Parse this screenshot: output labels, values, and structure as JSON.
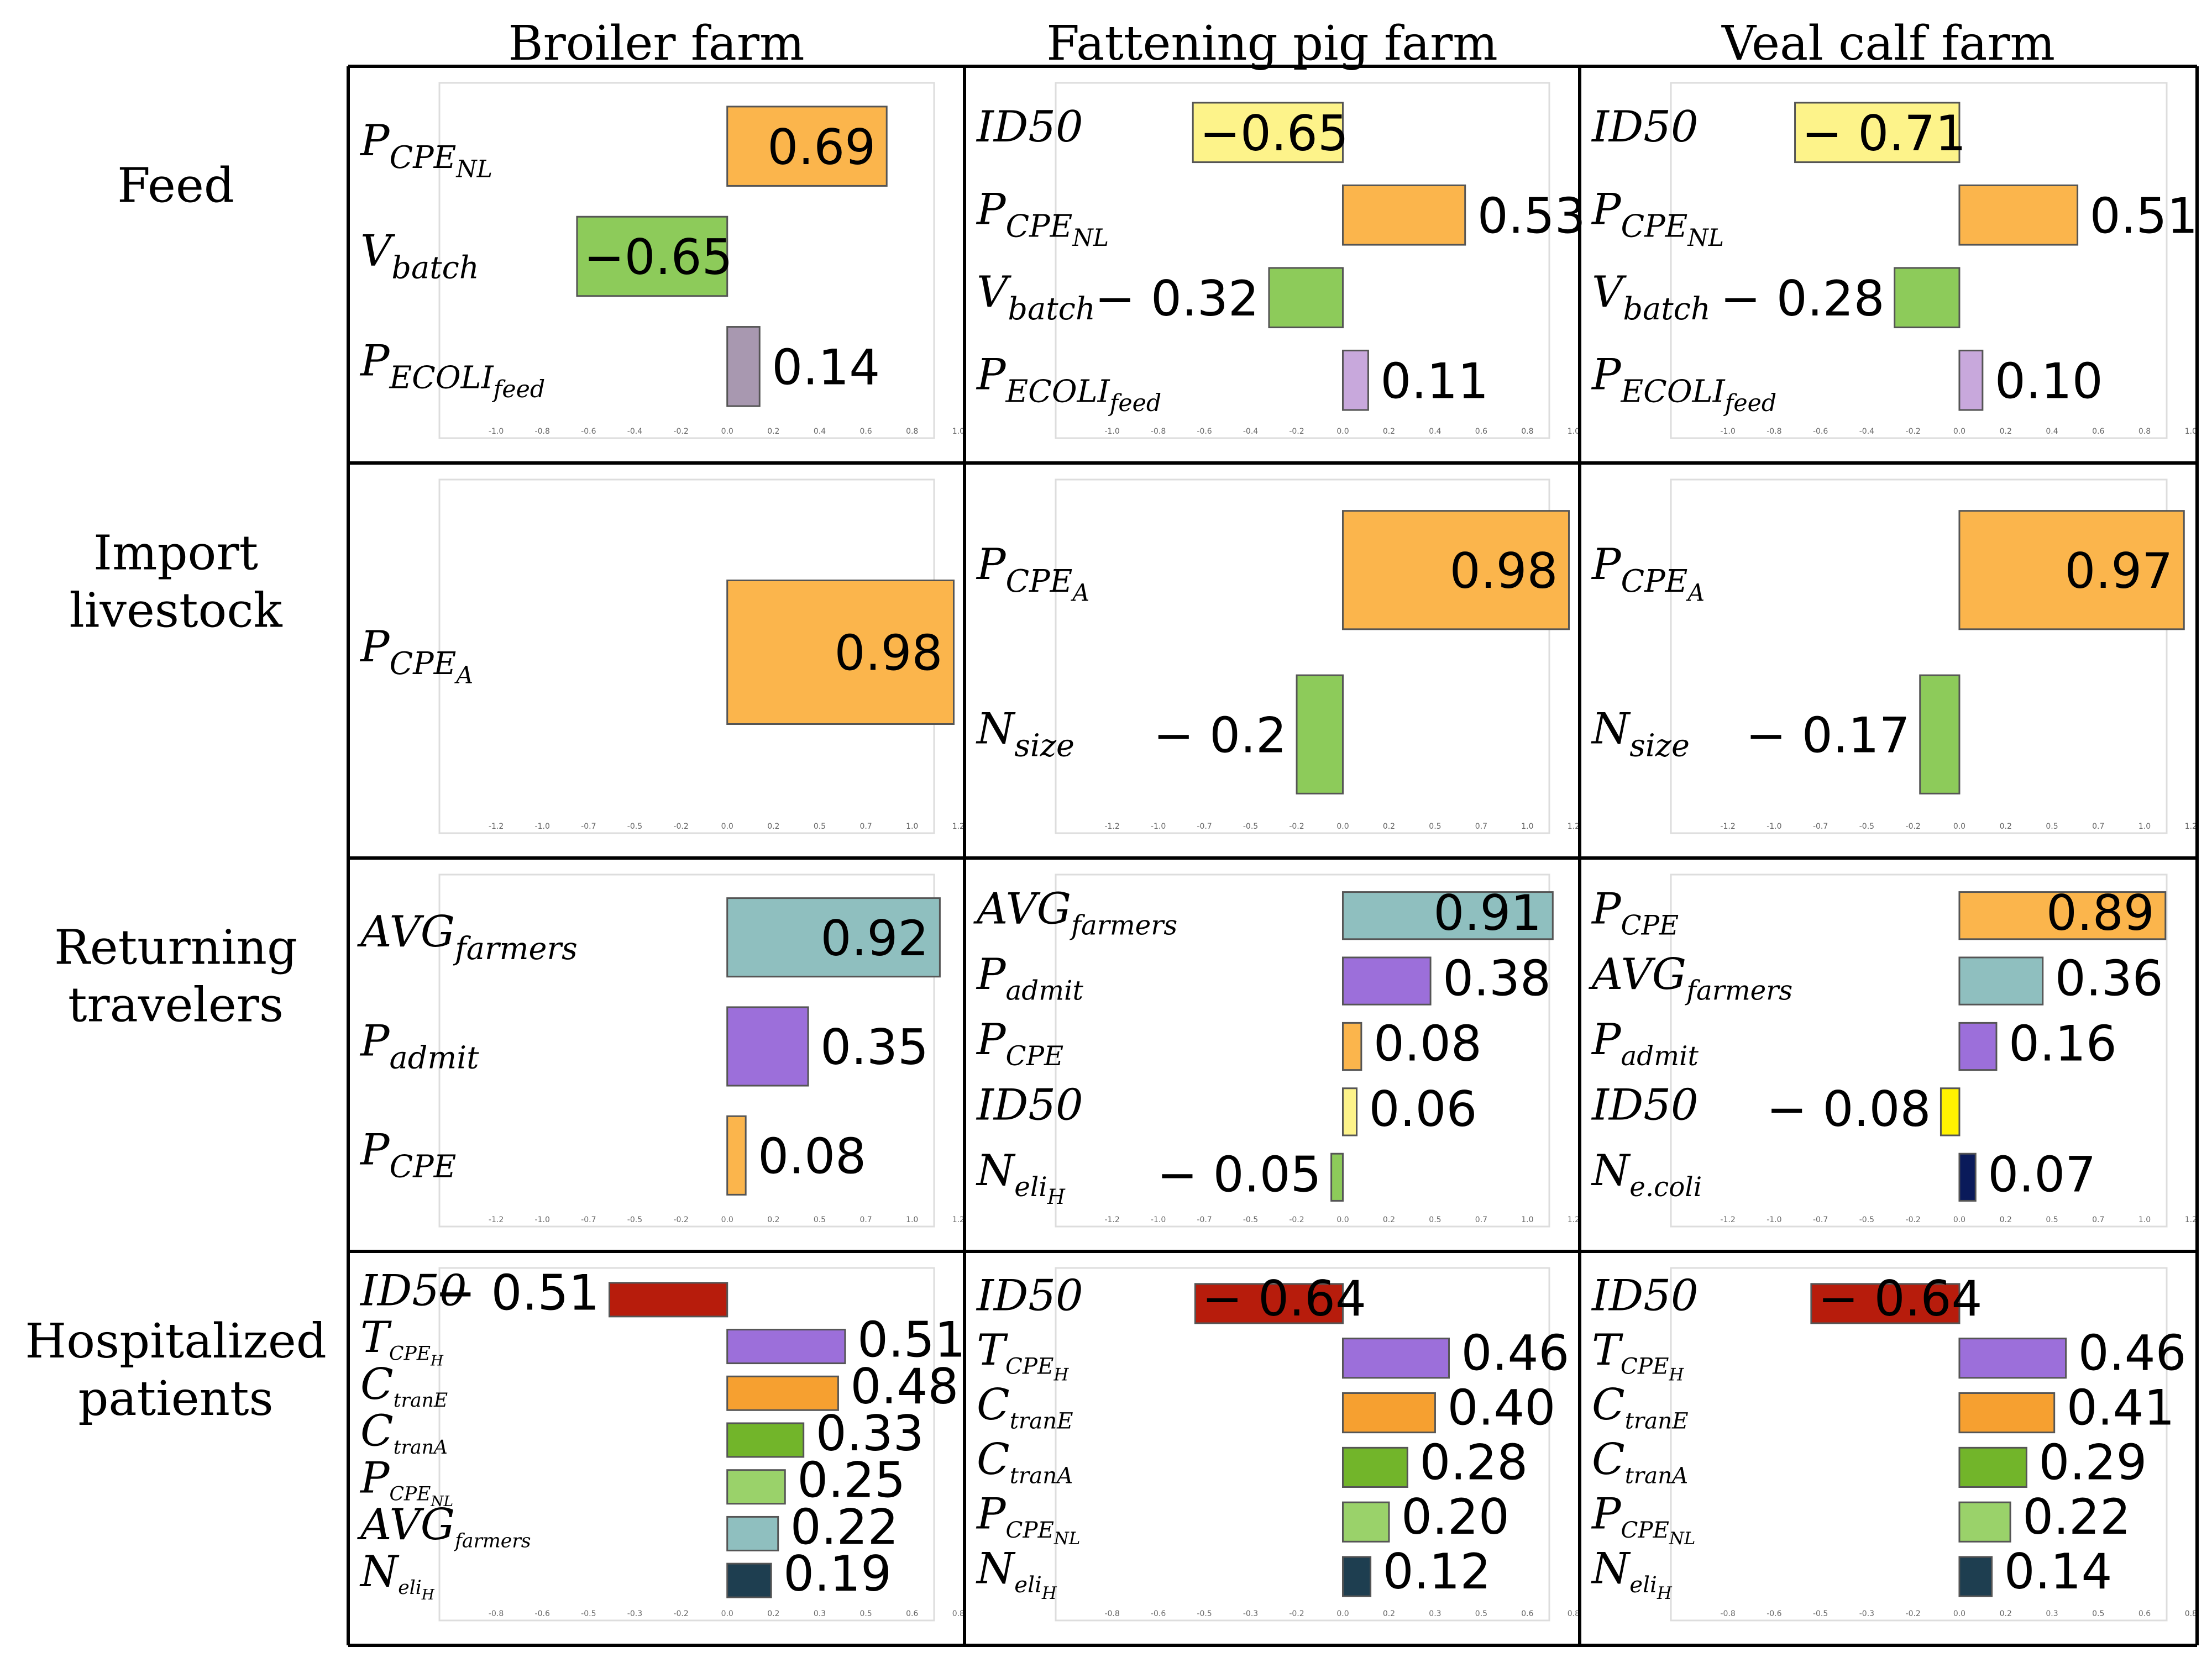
{
  "columns": [
    "Broiler farm",
    "Fattening pig farm",
    "Veal calf farm"
  ],
  "rows": [
    {
      "lines": [
        "Feed"
      ]
    },
    {
      "lines": [
        "Import",
        "livestock"
      ]
    },
    {
      "lines": [
        "Returning",
        "travelers"
      ]
    },
    {
      "lines": [
        "Hospitalized",
        "patients"
      ]
    }
  ],
  "colors": {
    "orange": "#FBB54C",
    "green": "#8DCB5A",
    "mauve": "#A898B0",
    "lavender": "#C8A8DC",
    "yellow": "#FDF38A",
    "teal": "#8FBFBF",
    "purple": "#9C6FDA",
    "bright_yellow": "#FFF200",
    "navy": "#0A1A5A",
    "dark_red": "#B71C0C",
    "dark_orange": "#F6A030",
    "dark_green": "#72B52A",
    "light_green": "#9AD26A",
    "dark_teal": "#1E3E50"
  },
  "chart_data": [
    {
      "type": "bar",
      "orientation": "horizontal",
      "row": "Feed",
      "column": "Broiler farm",
      "xlim": [
        -1.0,
        1.0
      ],
      "bars": [
        {
          "name": "P",
          "sub": "CPE",
          "subsub": "NL",
          "value": 0.69,
          "label": "0.69",
          "color": "orange"
        },
        {
          "name": "V",
          "sub": "batch",
          "value": -0.65,
          "label": "−0.65",
          "color": "green"
        },
        {
          "name": "P",
          "sub": "ECOLI",
          "subsub": "feed",
          "value": 0.14,
          "label": "0.14",
          "color": "mauve"
        }
      ]
    },
    {
      "type": "bar",
      "orientation": "horizontal",
      "row": "Feed",
      "column": "Fattening pig farm",
      "xlim": [
        -1.0,
        1.0
      ],
      "bars": [
        {
          "name": "ID50",
          "value": -0.65,
          "label": "−0.65",
          "color": "yellow"
        },
        {
          "name": "P",
          "sub": "CPE",
          "subsub": "NL",
          "value": 0.53,
          "label": "0.53",
          "color": "orange"
        },
        {
          "name": "V",
          "sub": "batch",
          "value": -0.32,
          "label": "− 0.32",
          "color": "green"
        },
        {
          "name": "P",
          "sub": "ECOLI",
          "subsub": "feed",
          "value": 0.11,
          "label": "0.11",
          "color": "lavender"
        }
      ]
    },
    {
      "type": "bar",
      "orientation": "horizontal",
      "row": "Feed",
      "column": "Veal calf farm",
      "xlim": [
        -1.0,
        1.0
      ],
      "bars": [
        {
          "name": "ID50",
          "value": -0.71,
          "label": "− 0.71",
          "color": "yellow"
        },
        {
          "name": "P",
          "sub": "CPE",
          "subsub": "NL",
          "value": 0.51,
          "label": "0.51",
          "color": "orange"
        },
        {
          "name": "V",
          "sub": "batch",
          "value": -0.28,
          "label": "− 0.28",
          "color": "green"
        },
        {
          "name": "P",
          "sub": "ECOLI",
          "subsub": "feed",
          "value": 0.1,
          "label": "0.10",
          "color": "lavender"
        }
      ]
    },
    {
      "type": "bar",
      "orientation": "horizontal",
      "row": "Import livestock",
      "column": "Broiler farm",
      "xlim": [
        -1.2,
        1.2
      ],
      "bars": [
        {
          "name": "P",
          "sub": "CPE",
          "subsub": "A",
          "value": 0.98,
          "label": "0.98",
          "color": "orange"
        }
      ]
    },
    {
      "type": "bar",
      "orientation": "horizontal",
      "row": "Import livestock",
      "column": "Fattening pig farm",
      "xlim": [
        -1.2,
        1.2
      ],
      "bars": [
        {
          "name": "P",
          "sub": "CPE",
          "subsub": "A",
          "value": 0.98,
          "label": "0.98",
          "color": "orange"
        },
        {
          "name": "N",
          "sub": "size",
          "value": -0.2,
          "label": "− 0.2",
          "color": "green"
        }
      ]
    },
    {
      "type": "bar",
      "orientation": "horizontal",
      "row": "Import livestock",
      "column": "Veal calf farm",
      "xlim": [
        -1.2,
        1.2
      ],
      "bars": [
        {
          "name": "P",
          "sub": "CPE",
          "subsub": "A",
          "value": 0.97,
          "label": "0.97",
          "color": "orange"
        },
        {
          "name": "N",
          "sub": "size",
          "value": -0.17,
          "label": "− 0.17",
          "color": "green"
        }
      ]
    },
    {
      "type": "bar",
      "orientation": "horizontal",
      "row": "Returning travelers",
      "column": "Broiler farm",
      "xlim": [
        -1.2,
        1.2
      ],
      "bars": [
        {
          "name": "AVG",
          "sub": "farmers",
          "value": 0.92,
          "label": "0.92",
          "color": "teal"
        },
        {
          "name": "P",
          "sub": "admit",
          "value": 0.35,
          "label": "0.35",
          "color": "purple"
        },
        {
          "name": "P",
          "sub": "CPE",
          "value": 0.08,
          "label": "0.08",
          "color": "orange"
        }
      ]
    },
    {
      "type": "bar",
      "orientation": "horizontal",
      "row": "Returning travelers",
      "column": "Fattening pig farm",
      "xlim": [
        -1.2,
        1.2
      ],
      "bars": [
        {
          "name": "AVG",
          "sub": "farmers",
          "value": 0.91,
          "label": "0.91",
          "color": "teal"
        },
        {
          "name": "P",
          "sub": "admit",
          "value": 0.38,
          "label": "0.38",
          "color": "purple"
        },
        {
          "name": "P",
          "sub": "CPE",
          "value": 0.08,
          "label": "0.08",
          "color": "orange"
        },
        {
          "name": "ID50",
          "value": 0.06,
          "label": "0.06",
          "color": "yellow"
        },
        {
          "name": "N",
          "sub": "eli",
          "subsub": "H",
          "value": -0.05,
          "label": "− 0.05",
          "color": "green"
        }
      ]
    },
    {
      "type": "bar",
      "orientation": "horizontal",
      "row": "Returning travelers",
      "column": "Veal calf farm",
      "xlim": [
        -1.2,
        1.2
      ],
      "bars": [
        {
          "name": "P",
          "sub": "CPE",
          "value": 0.89,
          "label": "0.89",
          "color": "orange"
        },
        {
          "name": "AVG",
          "sub": "farmers",
          "value": 0.36,
          "label": "0.36",
          "color": "teal"
        },
        {
          "name": "P",
          "sub": "admit",
          "value": 0.16,
          "label": "0.16",
          "color": "purple"
        },
        {
          "name": "ID50",
          "value": -0.08,
          "label": "− 0.08",
          "color": "bright_yellow"
        },
        {
          "name": "N",
          "sub": "e.coli",
          "value": 0.07,
          "label": "0.07",
          "color": "navy"
        }
      ]
    },
    {
      "type": "bar",
      "orientation": "horizontal",
      "row": "Hospitalized patients",
      "column": "Broiler farm",
      "xlim": [
        -0.8,
        0.8
      ],
      "bars": [
        {
          "name": "ID50",
          "value": -0.51,
          "label": "− 0.51",
          "color": "dark_red"
        },
        {
          "name": "T",
          "sub": "CPE",
          "subsub": "H",
          "value": 0.51,
          "label": "0.51",
          "color": "purple"
        },
        {
          "name": "C",
          "sub": "tranE",
          "value": 0.48,
          "label": "0.48",
          "color": "dark_orange"
        },
        {
          "name": "C",
          "sub": "tranA",
          "value": 0.33,
          "label": "0.33",
          "color": "dark_green"
        },
        {
          "name": "P",
          "sub": "CPE",
          "subsub": "NL",
          "value": 0.25,
          "label": "0.25",
          "color": "light_green"
        },
        {
          "name": "AVG",
          "sub": "farmers",
          "value": 0.22,
          "label": "0.22",
          "color": "teal"
        },
        {
          "name": "N",
          "sub": "eli",
          "subsub": "H",
          "value": 0.19,
          "label": "0.19",
          "color": "dark_teal"
        }
      ]
    },
    {
      "type": "bar",
      "orientation": "horizontal",
      "row": "Hospitalized patients",
      "column": "Fattening pig farm",
      "xlim": [
        -0.8,
        0.8
      ],
      "bars": [
        {
          "name": "ID50",
          "value": -0.64,
          "label": "− 0.64",
          "color": "dark_red"
        },
        {
          "name": "T",
          "sub": "CPE",
          "subsub": "H",
          "value": 0.46,
          "label": "0.46",
          "color": "purple"
        },
        {
          "name": "C",
          "sub": "tranE",
          "value": 0.4,
          "label": "0.40",
          "color": "dark_orange"
        },
        {
          "name": "C",
          "sub": "tranA",
          "value": 0.28,
          "label": "0.28",
          "color": "dark_green"
        },
        {
          "name": "P",
          "sub": "CPE",
          "subsub": "NL",
          "value": 0.2,
          "label": "0.20",
          "color": "light_green"
        },
        {
          "name": "N",
          "sub": "eli",
          "subsub": "H",
          "value": 0.12,
          "label": "0.12",
          "color": "dark_teal"
        }
      ]
    },
    {
      "type": "bar",
      "orientation": "horizontal",
      "row": "Hospitalized patients",
      "column": "Veal calf farm",
      "xlim": [
        -0.8,
        0.8
      ],
      "bars": [
        {
          "name": "ID50",
          "value": -0.64,
          "label": "− 0.64",
          "color": "dark_red"
        },
        {
          "name": "T",
          "sub": "CPE",
          "subsub": "H",
          "value": 0.46,
          "label": "0.46",
          "color": "purple"
        },
        {
          "name": "C",
          "sub": "tranE",
          "value": 0.41,
          "label": "0.41",
          "color": "dark_orange"
        },
        {
          "name": "C",
          "sub": "tranA",
          "value": 0.29,
          "label": "0.29",
          "color": "dark_green"
        },
        {
          "name": "P",
          "sub": "CPE",
          "subsub": "NL",
          "value": 0.22,
          "label": "0.22",
          "color": "light_green"
        },
        {
          "name": "N",
          "sub": "eli",
          "subsub": "H",
          "value": 0.14,
          "label": "0.14",
          "color": "dark_teal"
        }
      ]
    }
  ]
}
